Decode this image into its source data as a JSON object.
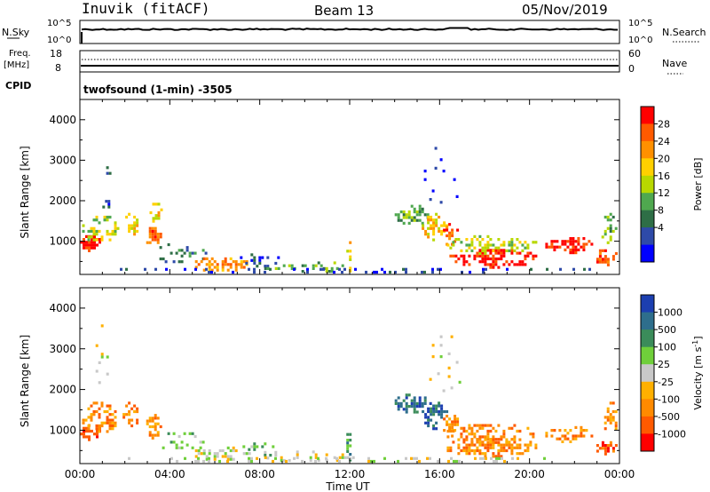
{
  "header": {
    "station": "Inuvik (fitACF)",
    "beam": "Beam 13",
    "date": "05/Nov/2019"
  },
  "top_panels": {
    "nsky_label": "N.Sky",
    "nsky_ticks": [
      "10^5",
      "10^0"
    ],
    "nsearch_label": "N.Search",
    "nsearch_ticks": [
      "10^5",
      "10^0"
    ],
    "freq_label": "Freq.",
    "freq_unit": "[MHz]",
    "freq_ticks": [
      "18",
      "8"
    ],
    "nave_label": "Nave",
    "nave_ticks": [
      "60",
      "0"
    ],
    "cpid_label": "CPID",
    "cpid_value": "twofsound (1-min) -3505"
  },
  "x_axis": {
    "label": "Time UT",
    "ticks": [
      "00:00",
      "04:00",
      "08:00",
      "12:00",
      "16:00",
      "20:00",
      "00:00"
    ]
  },
  "chart_data": [
    {
      "type": "heatmap",
      "name": "power",
      "ylabel": "Slant Range [km]",
      "yticks": [
        "4000",
        "3000",
        "2000",
        "1000"
      ],
      "ylim": [
        180,
        4500
      ],
      "xlim_hours": [
        0,
        24
      ],
      "colorbar": {
        "label": "Power [dB]",
        "ticks": [
          "28",
          "24",
          "20",
          "16",
          "12",
          "8",
          "4"
        ],
        "colors": [
          "#ff0000",
          "#ff5a00",
          "#ff9000",
          "#ffd000",
          "#b8d800",
          "#4fa84f",
          "#2e6e46",
          "#2e4aa8",
          "#0000ff"
        ]
      },
      "blobs": [
        {
          "t": 0.5,
          "r": 950,
          "dt": 0.5,
          "dr": 200,
          "c": 0,
          "d": 0.8
        },
        {
          "t": 0.9,
          "r": 1300,
          "dt": 0.8,
          "dr": 400,
          "c": 4,
          "d": 0.5
        },
        {
          "t": 1.2,
          "r": 1900,
          "dt": 0.2,
          "dr": 120,
          "c": 7,
          "d": 0.4
        },
        {
          "t": 1.2,
          "r": 2650,
          "dt": 0.15,
          "dr": 200,
          "c": 7,
          "d": 0.3
        },
        {
          "t": 2.3,
          "r": 1400,
          "dt": 0.4,
          "dr": 300,
          "c": 3,
          "d": 0.5
        },
        {
          "t": 3.3,
          "r": 1100,
          "dt": 0.35,
          "dr": 250,
          "c": 1,
          "d": 0.7
        },
        {
          "t": 3.4,
          "r": 1650,
          "dt": 0.3,
          "dr": 300,
          "c": 3,
          "d": 0.4
        },
        {
          "t": 4.5,
          "r": 700,
          "dt": 1.2,
          "dr": 250,
          "c": 6,
          "d": 0.35
        },
        {
          "t": 6.3,
          "r": 420,
          "dt": 1.3,
          "dr": 180,
          "c": 2,
          "d": 0.6
        },
        {
          "t": 8.0,
          "r": 500,
          "dt": 1.0,
          "dr": 200,
          "c": 7,
          "d": 0.3
        },
        {
          "t": 10.2,
          "r": 350,
          "dt": 2.0,
          "dr": 150,
          "c": 5,
          "d": 0.3
        },
        {
          "t": 12.0,
          "r": 600,
          "dt": 0.15,
          "dr": 400,
          "c": 3,
          "d": 0.5
        },
        {
          "t": 14.8,
          "r": 1650,
          "dt": 0.8,
          "dr": 250,
          "c": 5,
          "d": 0.6
        },
        {
          "t": 15.8,
          "r": 1350,
          "dt": 0.6,
          "dr": 350,
          "c": 3,
          "d": 0.5
        },
        {
          "t": 16.5,
          "r": 1150,
          "dt": 0.35,
          "dr": 300,
          "c": 1,
          "d": 0.6
        },
        {
          "t": 18.3,
          "r": 580,
          "dt": 2.1,
          "dr": 230,
          "c": 0,
          "d": 0.6
        },
        {
          "t": 18.3,
          "r": 900,
          "dt": 2.1,
          "dr": 250,
          "c": 4,
          "d": 0.45
        },
        {
          "t": 21.8,
          "r": 900,
          "dt": 1.1,
          "dr": 200,
          "c": 0,
          "d": 0.65
        },
        {
          "t": 23.4,
          "r": 600,
          "dt": 0.55,
          "dr": 200,
          "c": 1,
          "d": 0.6
        },
        {
          "t": 23.6,
          "r": 1300,
          "dt": 0.4,
          "dr": 400,
          "c": 5,
          "d": 0.4
        },
        {
          "t": 16.2,
          "r": 2600,
          "dt": 0.9,
          "dr": 800,
          "c": 7,
          "d": 0.07
        },
        {
          "t": 12.0,
          "r": 280,
          "dt": 12.0,
          "dr": 60,
          "c": 7,
          "d": 0.25
        }
      ]
    },
    {
      "type": "heatmap",
      "name": "velocity",
      "ylabel": "Slant Range [km]",
      "yticks": [
        "4000",
        "3000",
        "2000",
        "1000"
      ],
      "ylim": [
        180,
        4500
      ],
      "xlim_hours": [
        0,
        24
      ],
      "colorbar": {
        "label": "Velocity [m s^-1]",
        "ticks": [
          "1000",
          "500",
          "100",
          "25",
          "-25",
          "-100",
          "-500",
          "-1000"
        ],
        "colors": [
          "#1c3fb0",
          "#2e6e8c",
          "#3b8c5a",
          "#6fcf3a",
          "#c8c8c8",
          "#ffb000",
          "#ff8a00",
          "#ff5a00",
          "#ff0000"
        ]
      },
      "blobs": [
        {
          "t": 0.5,
          "r": 950,
          "dt": 0.5,
          "dr": 200,
          "c": 7,
          "d": 0.7
        },
        {
          "t": 0.9,
          "r": 1300,
          "dt": 0.8,
          "dr": 400,
          "c": 6,
          "d": 0.5
        },
        {
          "t": 2.3,
          "r": 1400,
          "dt": 0.4,
          "dr": 300,
          "c": 6,
          "d": 0.5
        },
        {
          "t": 3.3,
          "r": 1100,
          "dt": 0.35,
          "dr": 300,
          "c": 6,
          "d": 0.6
        },
        {
          "t": 4.5,
          "r": 700,
          "dt": 1.2,
          "dr": 250,
          "c": 3,
          "d": 0.3
        },
        {
          "t": 6.3,
          "r": 420,
          "dt": 1.3,
          "dr": 180,
          "c": 4,
          "d": 0.55
        },
        {
          "t": 8.0,
          "r": 500,
          "dt": 1.0,
          "dr": 200,
          "c": 3,
          "d": 0.3
        },
        {
          "t": 10.2,
          "r": 350,
          "dt": 2.0,
          "dr": 150,
          "c": 4,
          "d": 0.3
        },
        {
          "t": 12.0,
          "r": 600,
          "dt": 0.15,
          "dr": 400,
          "c": 2,
          "d": 0.5
        },
        {
          "t": 14.8,
          "r": 1650,
          "dt": 0.8,
          "dr": 250,
          "c": 1,
          "d": 0.6
        },
        {
          "t": 15.8,
          "r": 1350,
          "dt": 0.6,
          "dr": 350,
          "c": 1,
          "d": 0.5
        },
        {
          "t": 16.5,
          "r": 1150,
          "dt": 0.35,
          "dr": 300,
          "c": 6,
          "d": 0.6
        },
        {
          "t": 18.3,
          "r": 580,
          "dt": 2.1,
          "dr": 230,
          "c": 6,
          "d": 0.65
        },
        {
          "t": 18.3,
          "r": 900,
          "dt": 2.1,
          "dr": 250,
          "c": 6,
          "d": 0.45
        },
        {
          "t": 21.8,
          "r": 900,
          "dt": 1.1,
          "dr": 200,
          "c": 6,
          "d": 0.5
        },
        {
          "t": 23.4,
          "r": 600,
          "dt": 0.55,
          "dr": 200,
          "c": 7,
          "d": 0.55
        },
        {
          "t": 23.6,
          "r": 1300,
          "dt": 0.4,
          "dr": 400,
          "c": 6,
          "d": 0.4
        },
        {
          "t": 16.2,
          "r": 2600,
          "dt": 0.9,
          "dr": 800,
          "c": 4,
          "d": 0.06
        },
        {
          "t": 1.0,
          "r": 2800,
          "dt": 0.3,
          "dr": 800,
          "c": 4,
          "d": 0.08
        },
        {
          "t": 12.0,
          "r": 280,
          "dt": 12.0,
          "dr": 60,
          "c": 4,
          "d": 0.25
        }
      ]
    }
  ]
}
